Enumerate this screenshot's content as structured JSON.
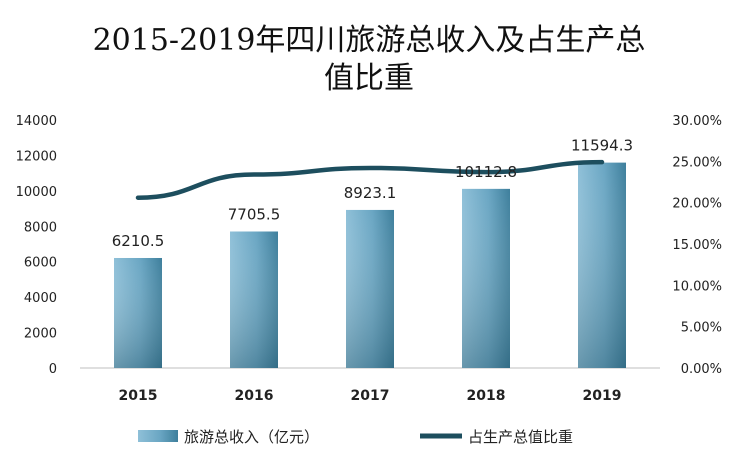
{
  "chart_data": {
    "type": "bar",
    "title_lines": [
      "2015-2019年四川旅游总收入及占生产总",
      "值比重"
    ],
    "categories": [
      "2015",
      "2016",
      "2017",
      "2018",
      "2019"
    ],
    "series": [
      {
        "name": "旅游总收入（亿元）",
        "type": "bar",
        "axis": "left",
        "values": [
          6210.5,
          7705.5,
          8923.1,
          10112.8,
          11594.3
        ],
        "labels": [
          "6210.5",
          "7705.5",
          "8923.1",
          "10112.8",
          "11594.3"
        ]
      },
      {
        "name": "占生产总值比重",
        "type": "line",
        "axis": "right",
        "values": [
          20.6,
          23.4,
          24.2,
          23.7,
          24.9
        ]
      }
    ],
    "y_left": {
      "ylim": [
        0,
        14000
      ],
      "ticks": [
        "0",
        "2000",
        "4000",
        "6000",
        "8000",
        "10000",
        "12000",
        "14000"
      ]
    },
    "y_right": {
      "ylim": [
        0,
        30
      ],
      "ticks": [
        "0.00%",
        "5.00%",
        "10.00%",
        "15.00%",
        "20.00%",
        "25.00%",
        "30.00%"
      ]
    },
    "grid": false,
    "legend_position": "bottom",
    "colors": {
      "bar_light": "#8fc0d8",
      "bar_dark": "#3e7f9c",
      "line": "#1d4e5e",
      "axis": "#bfbfbf"
    }
  }
}
